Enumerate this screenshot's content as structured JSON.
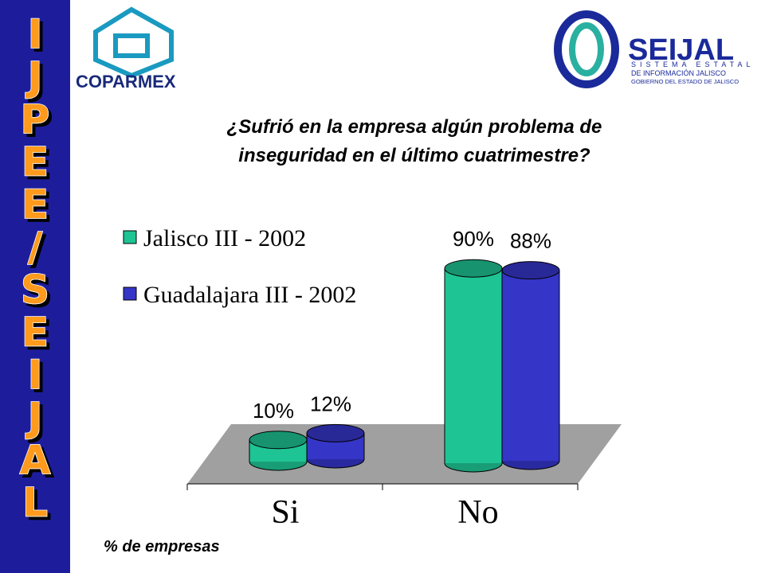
{
  "sidebar_letters": [
    "I",
    "J",
    "P",
    "E",
    "E",
    "/",
    "S",
    "E",
    "I",
    "J",
    "A",
    "L"
  ],
  "logo_left": "COPARMEX",
  "logo_right": {
    "name": "SEIJAL",
    "lines": [
      "SISTEMA ESTATAL",
      "DE INFORMACIÓN JALISCO",
      "GOBIERNO DEL ESTADO DE JALISCO"
    ]
  },
  "chart_data": {
    "type": "bar3d",
    "title_lines": [
      "¿Sufrió en la empresa algún problema de",
      "inseguridad en el último cuatrimestre?"
    ],
    "categories": [
      "Si",
      "No"
    ],
    "series": [
      {
        "name": "Jalisco III - 2002",
        "color": "#1fc494",
        "values": [
          10,
          90
        ],
        "value_labels": [
          "10%",
          "90%"
        ]
      },
      {
        "name": "Guadalajara III - 2002",
        "color": "#3535c8",
        "values": [
          12,
          88
        ],
        "value_labels": [
          "12%",
          "88%"
        ]
      }
    ],
    "footnote": "% de empresas"
  }
}
